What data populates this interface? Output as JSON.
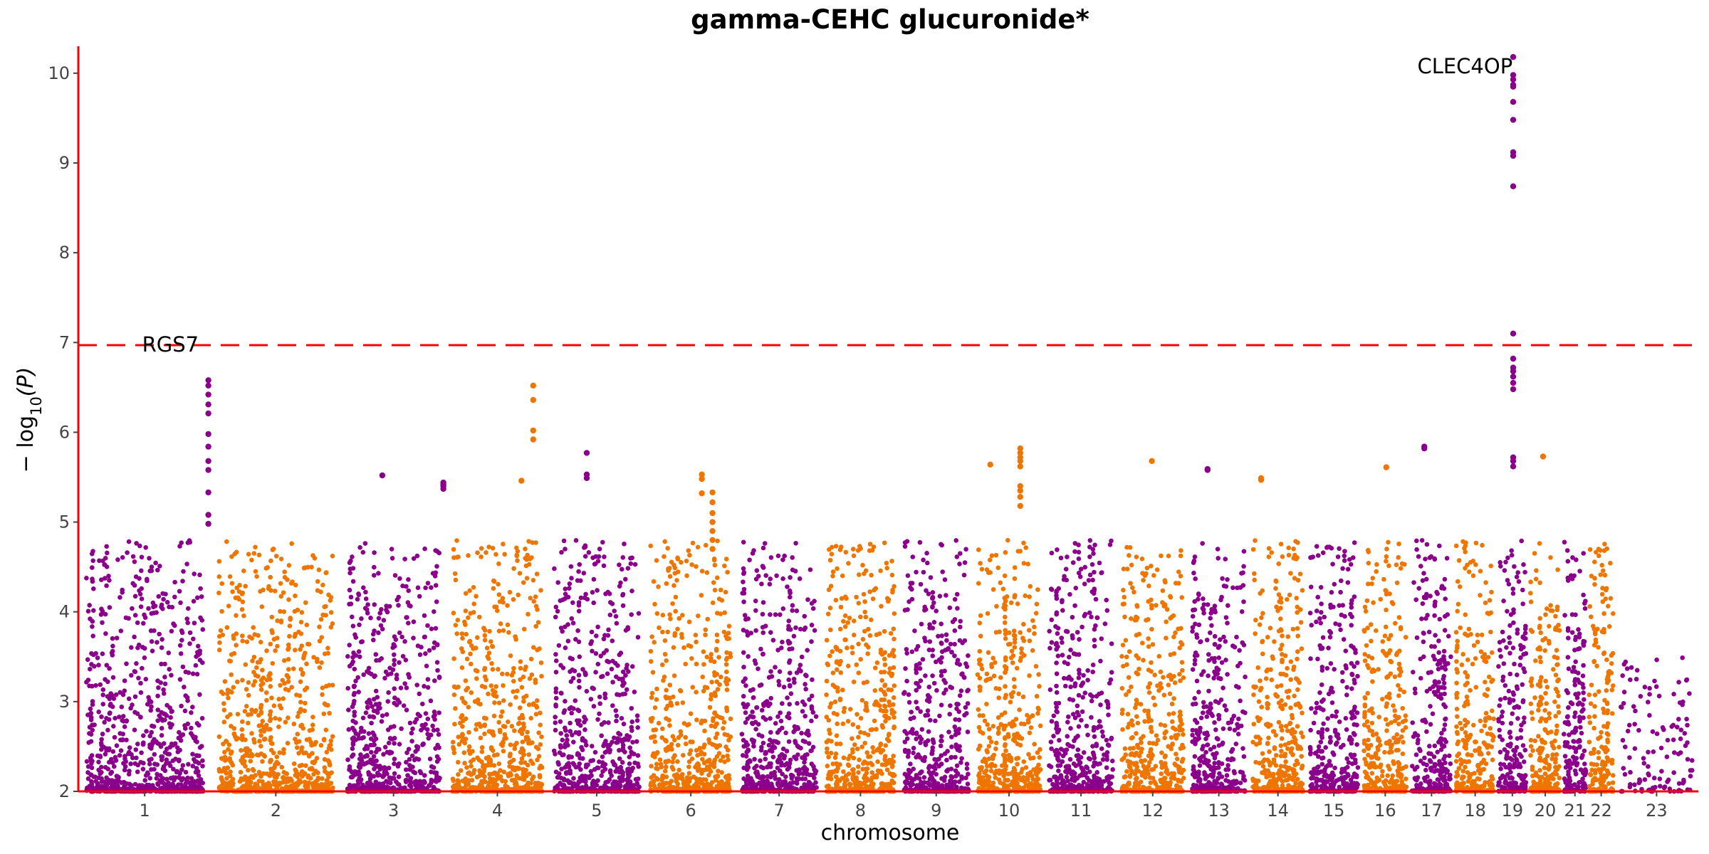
{
  "chart_data": {
    "type": "scatter",
    "title": "gamma-CEHC glucuronide*",
    "xlabel": "chromosome",
    "ylabel": "−log10(P)",
    "ylabel_parts": {
      "prefix": "− log",
      "sub": "10",
      "suffix": "(P)"
    },
    "ylim": [
      2,
      10.3
    ],
    "yticks": [
      2,
      3,
      4,
      5,
      6,
      7,
      8,
      9,
      10
    ],
    "grid": false,
    "legend": "none",
    "significance_threshold": 6.97,
    "colors": {
      "odd": "#8B008B",
      "even": "#EE7600",
      "threshold": "#FF0000",
      "axis": "#FF0000"
    },
    "chromosomes": [
      {
        "label": "1",
        "start": 0,
        "end": 248
      },
      {
        "label": "2",
        "start": 248,
        "end": 490
      },
      {
        "label": "3",
        "start": 490,
        "end": 688
      },
      {
        "label": "4",
        "start": 688,
        "end": 878
      },
      {
        "label": "5",
        "start": 878,
        "end": 1059
      },
      {
        "label": "6",
        "start": 1059,
        "end": 1230
      },
      {
        "label": "7",
        "start": 1230,
        "end": 1389
      },
      {
        "label": "8",
        "start": 1389,
        "end": 1534
      },
      {
        "label": "9",
        "start": 1534,
        "end": 1672
      },
      {
        "label": "10",
        "start": 1672,
        "end": 1806
      },
      {
        "label": "11",
        "start": 1806,
        "end": 1941
      },
      {
        "label": "12",
        "start": 1941,
        "end": 2074
      },
      {
        "label": "13",
        "start": 2074,
        "end": 2188
      },
      {
        "label": "14",
        "start": 2188,
        "end": 2295
      },
      {
        "label": "15",
        "start": 2295,
        "end": 2397
      },
      {
        "label": "16",
        "start": 2397,
        "end": 2487
      },
      {
        "label": "17",
        "start": 2487,
        "end": 2570
      },
      {
        "label": "18",
        "start": 2570,
        "end": 2650
      },
      {
        "label": "19",
        "start": 2650,
        "end": 2709
      },
      {
        "label": "20",
        "start": 2709,
        "end": 2773
      },
      {
        "label": "21",
        "start": 2773,
        "end": 2820
      },
      {
        "label": "22",
        "start": 2820,
        "end": 2871
      },
      {
        "label": "23",
        "start": 2871,
        "end": 3027
      }
    ],
    "annotations": [
      {
        "text": "RGS7",
        "x": 225,
        "y": 6.98
      },
      {
        "text": "CLEC4OP",
        "x": 2680,
        "y": 10.08
      }
    ],
    "peaks": [
      {
        "x": 243,
        "values": [
          6.58,
          6.52,
          6.42,
          6.31,
          6.21,
          5.98,
          5.84,
          5.68,
          5.58,
          5.33,
          5.08,
          4.98
        ]
      },
      {
        "x": 2681,
        "values": [
          10.18,
          9.98,
          9.93,
          9.87,
          9.85,
          9.68,
          9.48,
          9.12,
          9.08,
          8.74,
          7.1,
          6.82,
          6.72,
          6.68,
          6.62,
          6.55,
          6.48,
          5.72,
          5.68,
          5.62
        ]
      },
      {
        "x": 850,
        "values": [
          6.52,
          6.36,
          6.02,
          5.92
        ]
      },
      {
        "x": 1760,
        "values": [
          5.82,
          5.77,
          5.72,
          5.68,
          5.62,
          5.4,
          5.35,
          5.28,
          5.18
        ]
      },
      {
        "x": 1165,
        "values": [
          5.53,
          5.48,
          5.32
        ]
      },
      {
        "x": 950,
        "values": [
          5.77,
          5.53,
          5.49
        ]
      },
      {
        "x": 2515,
        "values": [
          5.84,
          5.82
        ]
      },
      {
        "x": 2006,
        "values": [
          5.68
        ]
      },
      {
        "x": 2210,
        "values": [
          5.49,
          5.47
        ]
      },
      {
        "x": 2110,
        "values": [
          5.59,
          5.58
        ]
      },
      {
        "x": 2737,
        "values": [
          5.73
        ]
      },
      {
        "x": 1704,
        "values": [
          5.64
        ]
      },
      {
        "x": 2444,
        "values": [
          5.61
        ]
      },
      {
        "x": 682,
        "values": [
          5.44,
          5.42,
          5.4,
          5.37
        ]
      },
      {
        "x": 828,
        "values": [
          5.46
        ]
      },
      {
        "x": 568,
        "values": [
          5.52
        ]
      },
      {
        "x": 1185,
        "values": [
          5.33,
          5.22,
          5.1,
          5.0,
          4.9,
          4.8,
          4.7
        ]
      }
    ],
    "background_points": "procedurally generated dense baseline, -log10(P) between 2 and ~5 per chromosome"
  }
}
